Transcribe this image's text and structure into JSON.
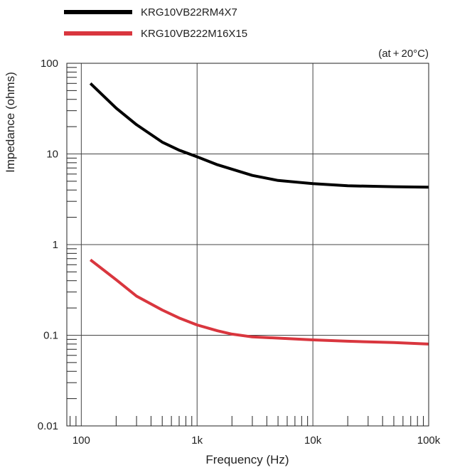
{
  "chart_data": {
    "type": "line",
    "xlabel": "Frequency (Hz)",
    "ylabel": "Impedance (ohms)",
    "x_scale": "log",
    "y_scale": "log",
    "xlim": [
      75,
      100000
    ],
    "ylim": [
      0.01,
      100
    ],
    "grid": true,
    "x_ticks": [
      {
        "value": 100,
        "label": "100"
      },
      {
        "value": 1000,
        "label": "1k"
      },
      {
        "value": 10000,
        "label": "10k"
      },
      {
        "value": 100000,
        "label": "100k"
      }
    ],
    "y_ticks": [
      {
        "value": 100,
        "label": "100"
      },
      {
        "value": 10,
        "label": "10"
      },
      {
        "value": 1,
        "label": "1"
      },
      {
        "value": 0.1,
        "label": "0.1"
      },
      {
        "value": 0.01,
        "label": "0.01"
      }
    ],
    "annotation": "(at + 20°C)",
    "legend_position": "top-left, above plot",
    "series": [
      {
        "name": "KRG10VB22RM4X7",
        "color": "#000000",
        "points": [
          [
            120,
            60
          ],
          [
            200,
            32
          ],
          [
            300,
            21
          ],
          [
            500,
            13.5
          ],
          [
            700,
            11
          ],
          [
            1000,
            9.3
          ],
          [
            1500,
            7.6
          ],
          [
            3000,
            5.8
          ],
          [
            5000,
            5.1
          ],
          [
            10000,
            4.7
          ],
          [
            20000,
            4.45
          ],
          [
            50000,
            4.35
          ],
          [
            100000,
            4.3
          ]
        ]
      },
      {
        "name": "KRG10VB222M16X15",
        "color": "#d9363e",
        "points": [
          [
            120,
            0.68
          ],
          [
            200,
            0.41
          ],
          [
            300,
            0.27
          ],
          [
            500,
            0.19
          ],
          [
            700,
            0.155
          ],
          [
            1000,
            0.13
          ],
          [
            1500,
            0.112
          ],
          [
            2000,
            0.103
          ],
          [
            3000,
            0.096
          ],
          [
            5000,
            0.093
          ],
          [
            10000,
            0.089
          ],
          [
            20000,
            0.086
          ],
          [
            50000,
            0.083
          ],
          [
            100000,
            0.08
          ]
        ]
      }
    ]
  }
}
